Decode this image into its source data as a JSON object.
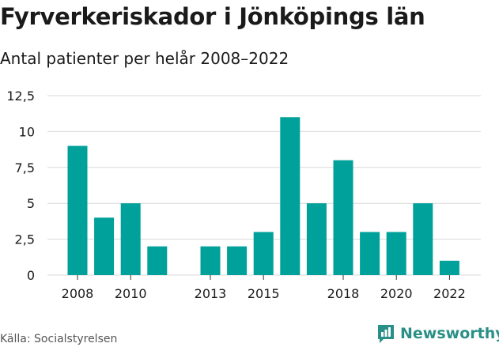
{
  "header": {
    "title": "Fyrverkeriskador i Jönköpings län",
    "subtitle": "Antal patienter per helår 2008–2022"
  },
  "footer": {
    "source": "Källa: Socialstyrelsen",
    "brand": "Newsworthy"
  },
  "colors": {
    "bar": "#00a19a",
    "grid": "#d9d9d9",
    "brand": "#2a8f86"
  },
  "chart_data": {
    "type": "bar",
    "categories": [
      "2008",
      "2009",
      "2010",
      "2011",
      "2012",
      "2013",
      "2014",
      "2015",
      "2016",
      "2017",
      "2018",
      "2019",
      "2020",
      "2021",
      "2022"
    ],
    "values": [
      9,
      4,
      5,
      2,
      null,
      2,
      2,
      3,
      11,
      5,
      8,
      3,
      3,
      5,
      1
    ],
    "x_tick_labels": [
      "2008",
      "2010",
      "2013",
      "2015",
      "2018",
      "2020",
      "2022"
    ],
    "y_ticks": [
      0,
      2.5,
      5,
      7.5,
      10,
      12.5
    ],
    "y_tick_labels": [
      "0",
      "2,5",
      "5",
      "7,5",
      "10",
      "12,5"
    ],
    "ylim": [
      0,
      12.5
    ],
    "grid": true
  }
}
